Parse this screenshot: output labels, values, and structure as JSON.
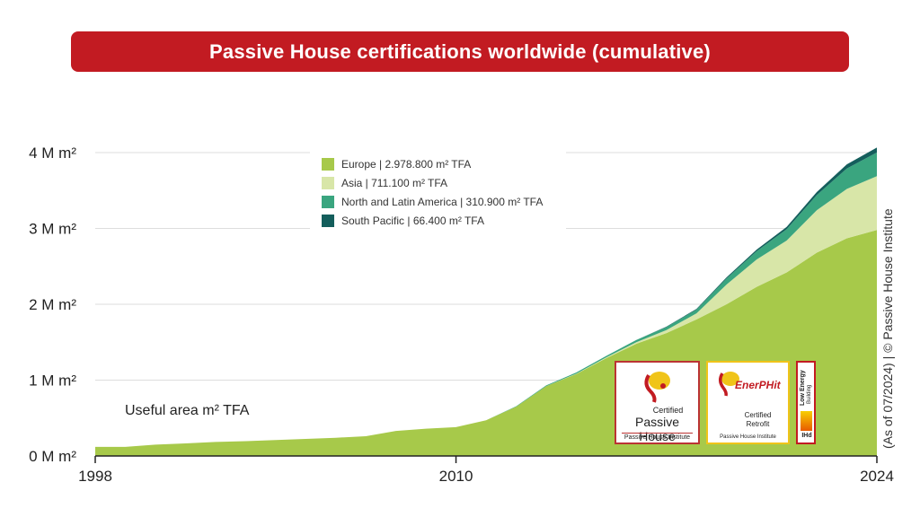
{
  "title": "Passive House certifications worldwide (cumulative)",
  "side_note": "(As of 07/2024) | © Passive House Institute",
  "annotation": "Useful area m² TFA",
  "colors": {
    "banner": "#c21b22",
    "europe": "#a7c94a",
    "asia": "#d8e6a8",
    "north_latin_america": "#3aa57f",
    "south_pacific": "#145e5c"
  },
  "logos": {
    "passive_house": {
      "line1": "Certified",
      "line2": "Passive House",
      "line3": "Passive House Institute"
    },
    "enerphit": {
      "brand": "EnerPHit",
      "line1": "Certified",
      "line2": "Retrofit",
      "line3": "Passive House Institute"
    },
    "low_energy": {
      "line1": "Low Energy",
      "line2": "Building",
      "line3": "IHd"
    }
  },
  "chart_data": {
    "type": "area",
    "stacked": true,
    "xlabel": "",
    "ylabel": "",
    "x_ticks": [
      "1998",
      "2010",
      "2024"
    ],
    "y_ticks": [
      "0 M m²",
      "1 M m²",
      "2 M m²",
      "3 M m²",
      "4 M m²"
    ],
    "ylim": [
      0,
      4000000
    ],
    "xlim": [
      1998,
      2024
    ],
    "legend_position": "top-center",
    "x": [
      1998,
      1999,
      2000,
      2001,
      2002,
      2003,
      2004,
      2005,
      2006,
      2007,
      2008,
      2009,
      2010,
      2011,
      2012,
      2013,
      2014,
      2015,
      2016,
      2017,
      2018,
      2019,
      2020,
      2021,
      2022,
      2023,
      2024
    ],
    "series": [
      {
        "name": "Europe | 2.978.800 m² TFA",
        "color": "#a7c94a",
        "values": [
          120000,
          120000,
          150000,
          165000,
          185000,
          195000,
          210000,
          225000,
          240000,
          260000,
          330000,
          360000,
          380000,
          470000,
          650000,
          920000,
          1080000,
          1290000,
          1480000,
          1620000,
          1800000,
          2000000,
          2230000,
          2420000,
          2680000,
          2870000,
          2978800
        ]
      },
      {
        "name": "Asia | 711.100 m² TFA",
        "color": "#d8e6a8",
        "values": [
          0,
          0,
          0,
          0,
          0,
          0,
          0,
          0,
          0,
          0,
          0,
          0,
          0,
          0,
          0,
          0,
          5000,
          10000,
          20000,
          40000,
          80000,
          260000,
          360000,
          420000,
          560000,
          650000,
          711100
        ]
      },
      {
        "name": "North and Latin America | 310.900 m² TFA",
        "color": "#3aa57f",
        "values": [
          0,
          0,
          0,
          0,
          0,
          0,
          0,
          0,
          0,
          0,
          0,
          0,
          0,
          0,
          5000,
          10000,
          15000,
          20000,
          30000,
          40000,
          50000,
          80000,
          110000,
          150000,
          200000,
          270000,
          310900
        ]
      },
      {
        "name": "South Pacific | 66.400 m² TFA",
        "color": "#145e5c",
        "values": [
          0,
          0,
          0,
          0,
          0,
          0,
          0,
          0,
          0,
          0,
          0,
          0,
          0,
          0,
          0,
          0,
          0,
          0,
          0,
          5000,
          10000,
          15000,
          20000,
          30000,
          40000,
          55000,
          66400
        ]
      }
    ]
  }
}
